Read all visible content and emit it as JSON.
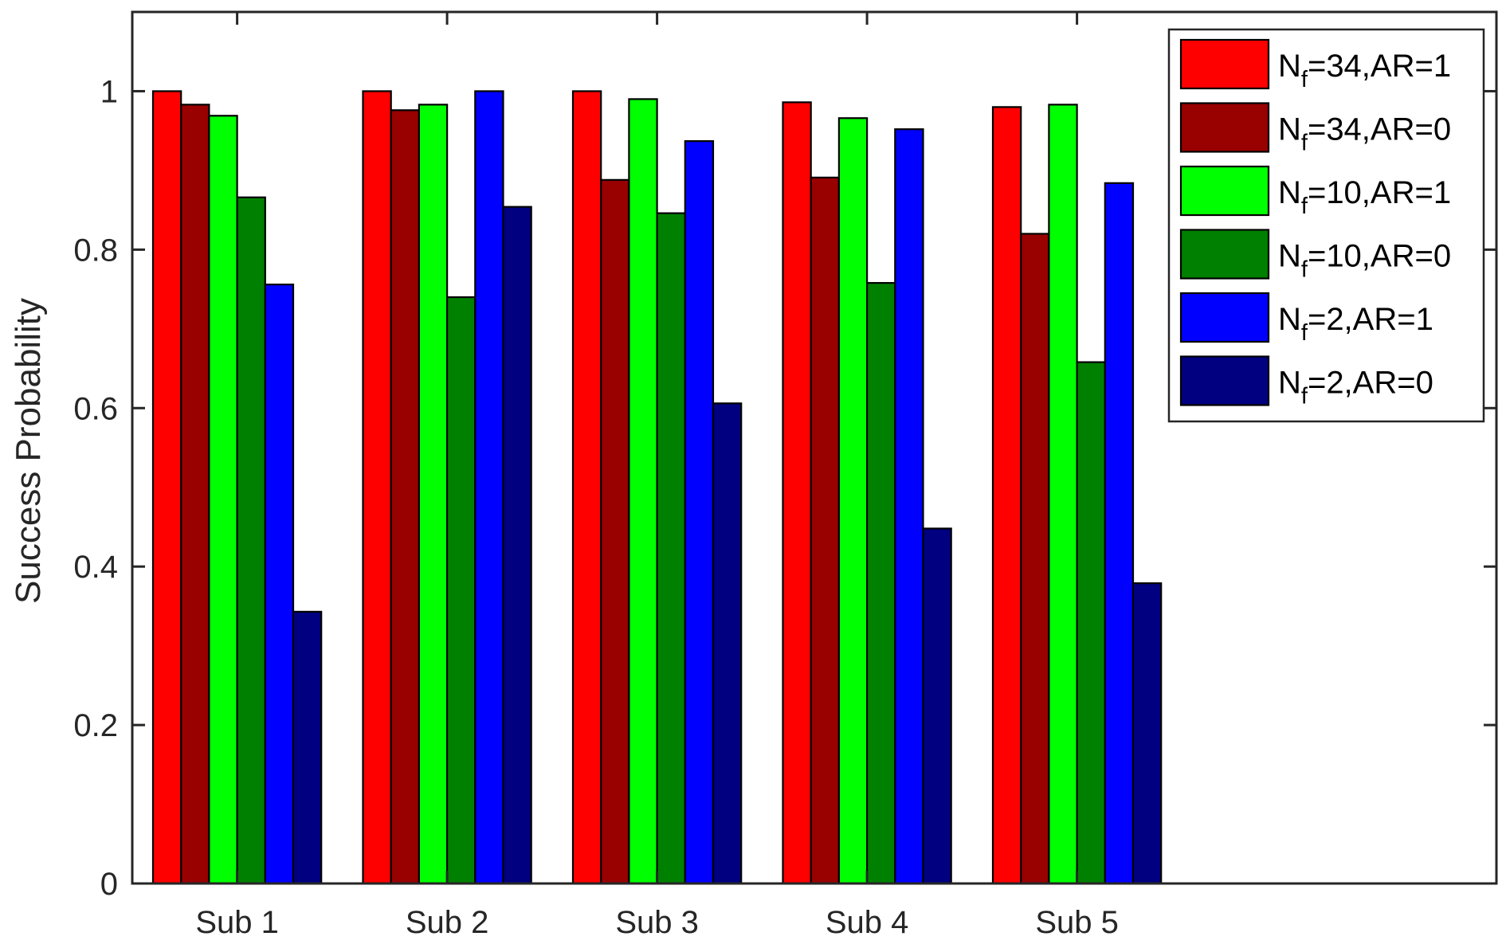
{
  "chart_data": {
    "type": "bar",
    "title": "",
    "xlabel": "",
    "ylabel": "Success Probability",
    "ylim": [
      0,
      1.1
    ],
    "yticks": [
      0,
      0.2,
      0.4,
      0.6,
      0.8,
      1
    ],
    "ytick_labels": [
      "0",
      "0.2",
      "0.4",
      "0.6",
      "0.8",
      "1"
    ],
    "categories": [
      "Sub 1",
      "Sub 2",
      "Sub 3",
      "Sub 4",
      "Sub 5"
    ],
    "grid": false,
    "legend_position": "top-right",
    "series": [
      {
        "name_main": "N",
        "name_sub": "f",
        "name_rest": "=34,AR=1",
        "color": "#ff0000",
        "values": [
          1.0,
          1.0,
          1.0,
          0.986,
          0.98
        ]
      },
      {
        "name_main": "N",
        "name_sub": "f",
        "name_rest": "=34,AR=0",
        "color": "#990000",
        "values": [
          0.983,
          0.976,
          0.888,
          0.891,
          0.82
        ]
      },
      {
        "name_main": "N",
        "name_sub": "f",
        "name_rest": "=10,AR=1",
        "color": "#00ff00",
        "values": [
          0.969,
          0.983,
          0.99,
          0.966,
          0.983
        ]
      },
      {
        "name_main": "N",
        "name_sub": "f",
        "name_rest": "=10,AR=0",
        "color": "#008000",
        "values": [
          0.866,
          0.74,
          0.846,
          0.758,
          0.658
        ]
      },
      {
        "name_main": "N",
        "name_sub": "f",
        "name_rest": "=2,AR=1",
        "color": "#0000ff",
        "values": [
          0.756,
          1.0,
          0.937,
          0.952,
          0.884
        ]
      },
      {
        "name_main": "N",
        "name_sub": "f",
        "name_rest": "=2,AR=0",
        "color": "#000080",
        "values": [
          0.343,
          0.854,
          0.606,
          0.448,
          0.379
        ]
      }
    ]
  }
}
